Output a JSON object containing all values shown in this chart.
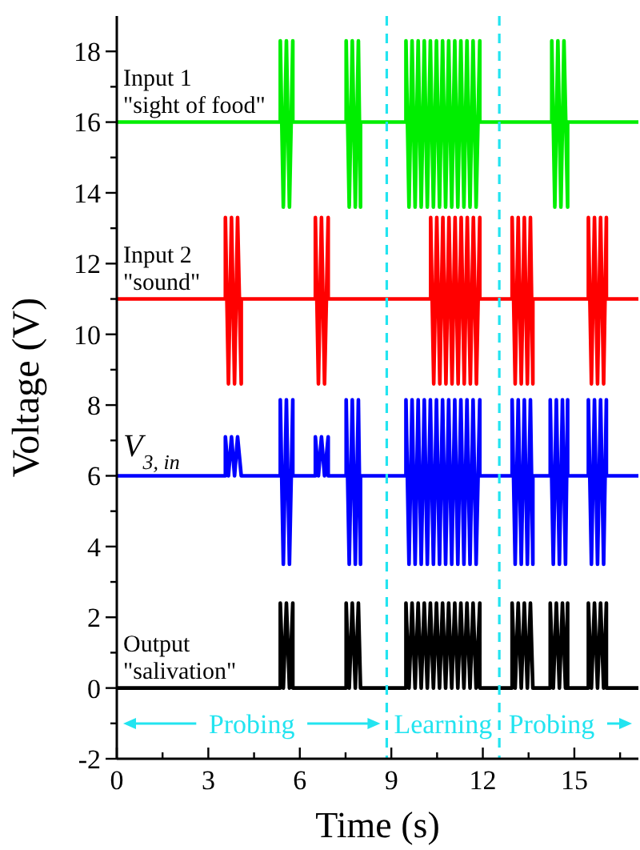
{
  "chart_data": {
    "type": "line",
    "xlabel": "Time (s)",
    "ylabel": "Voltage (V)",
    "xlim": [
      0,
      17.1
    ],
    "ylim": [
      -2,
      19
    ],
    "xticks": [
      0,
      {
        "value": 1.5,
        "label": null
      },
      3,
      {
        "value": 4.5,
        "label": null
      },
      6,
      {
        "value": 7.5,
        "label": null
      },
      9,
      {
        "value": 10.5,
        "label": null
      },
      12,
      {
        "value": 13.5,
        "label": null
      },
      15,
      {
        "value": 16.5,
        "label": null
      }
    ],
    "yticks": [
      -2,
      {
        "value": -1,
        "label": null
      },
      0,
      {
        "value": 1,
        "label": null
      },
      2,
      {
        "value": 3,
        "label": null
      },
      4,
      {
        "value": 5,
        "label": null
      },
      6,
      {
        "value": 7,
        "label": null
      },
      8,
      {
        "value": 9,
        "label": null
      },
      10,
      {
        "value": 11,
        "label": null
      },
      12,
      {
        "value": 13,
        "label": null
      },
      14,
      {
        "value": 15,
        "label": null
      },
      16,
      {
        "value": 17,
        "label": null
      },
      18
    ],
    "grid": false,
    "marker": "none",
    "line_style": "solid",
    "series": [
      {
        "name": "Input 1 \"sight of food\"",
        "color": "#00ee00",
        "x": [
          0,
          5.36,
          5.36,
          5.46,
          5.56,
          5.66,
          5.77,
          5.77,
          7.52,
          7.52,
          7.62,
          7.72,
          7.82,
          7.92,
          7.99,
          7.99,
          9.48,
          9.48,
          9.58,
          9.68,
          9.78,
          9.88,
          9.98,
          10.08,
          10.18,
          10.28,
          10.38,
          10.48,
          10.58,
          10.68,
          10.78,
          10.88,
          10.98,
          11.08,
          11.18,
          11.28,
          11.38,
          11.48,
          11.58,
          11.68,
          11.78,
          11.9,
          11.9,
          14.26,
          14.26,
          14.36,
          14.46,
          14.56,
          14.66,
          14.78,
          14.78,
          17.1
        ],
        "values": [
          16,
          16,
          18.3,
          13.6,
          18.3,
          13.6,
          18.3,
          16,
          16,
          18.3,
          13.6,
          18.3,
          13.6,
          18.3,
          13.6,
          16,
          16,
          18.3,
          13.6,
          18.3,
          13.6,
          18.3,
          13.6,
          18.3,
          13.6,
          18.3,
          13.6,
          18.3,
          13.6,
          18.3,
          13.6,
          18.3,
          13.6,
          18.3,
          13.6,
          18.3,
          13.6,
          18.3,
          13.6,
          18.3,
          13.6,
          18.3,
          16,
          16,
          18.3,
          13.6,
          18.3,
          13.6,
          18.3,
          13.6,
          16,
          16
        ]
      },
      {
        "name": "Input 2 \"sound\"",
        "color": "#ff0000",
        "x": [
          0,
          3.56,
          3.56,
          3.66,
          3.76,
          3.86,
          3.96,
          4.08,
          4.08,
          6.51,
          6.51,
          6.61,
          6.71,
          6.81,
          6.93,
          6.93,
          10.29,
          10.29,
          10.39,
          10.49,
          10.59,
          10.69,
          10.79,
          10.89,
          10.99,
          11.09,
          11.19,
          11.29,
          11.39,
          11.49,
          11.59,
          11.69,
          11.79,
          11.9,
          11.9,
          12.96,
          12.96,
          13.06,
          13.16,
          13.26,
          13.36,
          13.46,
          13.56,
          13.64,
          13.64,
          15.46,
          15.46,
          15.56,
          15.66,
          15.76,
          15.86,
          15.96,
          16.05,
          16.05,
          17.1
        ],
        "values": [
          11,
          11,
          13.3,
          8.6,
          13.3,
          8.6,
          13.3,
          8.6,
          11,
          11,
          13.3,
          8.6,
          13.3,
          8.6,
          13.3,
          11,
          11,
          13.3,
          8.6,
          13.3,
          8.6,
          13.3,
          8.6,
          13.3,
          8.6,
          13.3,
          8.6,
          13.3,
          8.6,
          13.3,
          8.6,
          13.3,
          8.6,
          13.3,
          11,
          11,
          13.3,
          8.6,
          13.3,
          8.6,
          13.3,
          8.6,
          13.3,
          8.6,
          11,
          11,
          13.3,
          8.6,
          13.3,
          8.6,
          13.3,
          8.6,
          13.3,
          11,
          11
        ]
      },
      {
        "name": "V$_{3, in}$",
        "color": "#0000ff",
        "x": [
          0,
          3.56,
          3.56,
          3.66,
          3.76,
          3.86,
          3.96,
          4.08,
          4.08,
          5.36,
          5.36,
          5.46,
          5.56,
          5.66,
          5.77,
          5.77,
          6.51,
          6.51,
          6.61,
          6.71,
          6.81,
          6.93,
          6.93,
          7.52,
          7.52,
          7.62,
          7.72,
          7.82,
          7.92,
          7.99,
          7.99,
          9.48,
          9.48,
          9.58,
          9.68,
          9.78,
          9.88,
          9.98,
          10.08,
          10.18,
          10.28,
          10.38,
          10.48,
          10.58,
          10.68,
          10.78,
          10.88,
          10.98,
          11.08,
          11.18,
          11.28,
          11.38,
          11.48,
          11.58,
          11.68,
          11.78,
          11.9,
          11.9,
          12.96,
          12.96,
          13.06,
          13.16,
          13.26,
          13.36,
          13.46,
          13.56,
          13.64,
          13.64,
          14.21,
          14.21,
          14.31,
          14.41,
          14.51,
          14.61,
          14.71,
          14.78,
          14.78,
          15.46,
          15.46,
          15.56,
          15.66,
          15.76,
          15.86,
          15.96,
          16.05,
          16.05,
          17.1
        ],
        "values": [
          6,
          6,
          7.1,
          6,
          7.1,
          6,
          7.1,
          6,
          6,
          6,
          8.15,
          3.5,
          8.15,
          3.5,
          8.15,
          6,
          6,
          7.1,
          6,
          7.1,
          6,
          7.1,
          6,
          6,
          8.15,
          3.5,
          8.15,
          3.5,
          8.15,
          3.5,
          6,
          6,
          8.15,
          3.5,
          8.15,
          3.5,
          8.15,
          3.5,
          8.15,
          3.5,
          8.15,
          3.5,
          8.15,
          3.5,
          8.15,
          3.5,
          8.15,
          3.5,
          8.15,
          3.5,
          8.15,
          3.5,
          8.15,
          3.5,
          8.15,
          3.5,
          8.15,
          6,
          6,
          8.15,
          3.5,
          8.15,
          3.5,
          8.15,
          3.5,
          8.15,
          3.5,
          6,
          6,
          8.15,
          3.5,
          8.15,
          3.5,
          8.15,
          3.5,
          8.15,
          6,
          6,
          8.15,
          3.5,
          8.15,
          3.5,
          8.15,
          3.5,
          8.15,
          6,
          6
        ]
      },
      {
        "name": "Output \"salivation\"",
        "color": "#000000",
        "x": [
          0,
          5.36,
          5.36,
          5.46,
          5.56,
          5.66,
          5.77,
          5.77,
          7.52,
          7.52,
          7.62,
          7.72,
          7.82,
          7.92,
          7.99,
          7.99,
          9.48,
          9.48,
          9.58,
          9.68,
          9.78,
          9.88,
          9.98,
          10.08,
          10.18,
          10.28,
          10.38,
          10.48,
          10.58,
          10.68,
          10.78,
          10.88,
          10.98,
          11.08,
          11.18,
          11.28,
          11.38,
          11.48,
          11.58,
          11.68,
          11.78,
          11.9,
          11.9,
          12.96,
          12.96,
          13.06,
          13.16,
          13.26,
          13.36,
          13.46,
          13.56,
          13.64,
          13.64,
          14.21,
          14.21,
          14.31,
          14.41,
          14.51,
          14.61,
          14.71,
          14.78,
          14.78,
          15.46,
          15.46,
          15.56,
          15.66,
          15.76,
          15.86,
          15.96,
          16.05,
          16.05,
          17.1
        ],
        "values": [
          0,
          0,
          2.4,
          0,
          2.4,
          0,
          2.4,
          0,
          0,
          2.4,
          0,
          2.4,
          0,
          2.4,
          0,
          0,
          0,
          2.4,
          0,
          2.4,
          0,
          2.4,
          0,
          2.4,
          0,
          2.4,
          0,
          2.4,
          0,
          2.4,
          0,
          2.4,
          0,
          2.4,
          0,
          2.4,
          0,
          2.4,
          0,
          2.4,
          0,
          2.4,
          0,
          0,
          2.4,
          0,
          2.4,
          0,
          2.4,
          0,
          2.4,
          0,
          0,
          0,
          2.4,
          0,
          2.4,
          0,
          2.4,
          0,
          2.4,
          0,
          0,
          2.4,
          0,
          2.4,
          0,
          2.4,
          0,
          2.4,
          0,
          0
        ]
      }
    ],
    "ref_lines": [
      {
        "axis": "x",
        "value": 8.85,
        "color": "#22e4f0",
        "line_style": "dashed"
      },
      {
        "axis": "x",
        "value": 12.54,
        "color": "#22e4f0",
        "line_style": "dashed"
      }
    ],
    "annotations": [
      "Probing",
      "Learning",
      "Probing"
    ]
  }
}
